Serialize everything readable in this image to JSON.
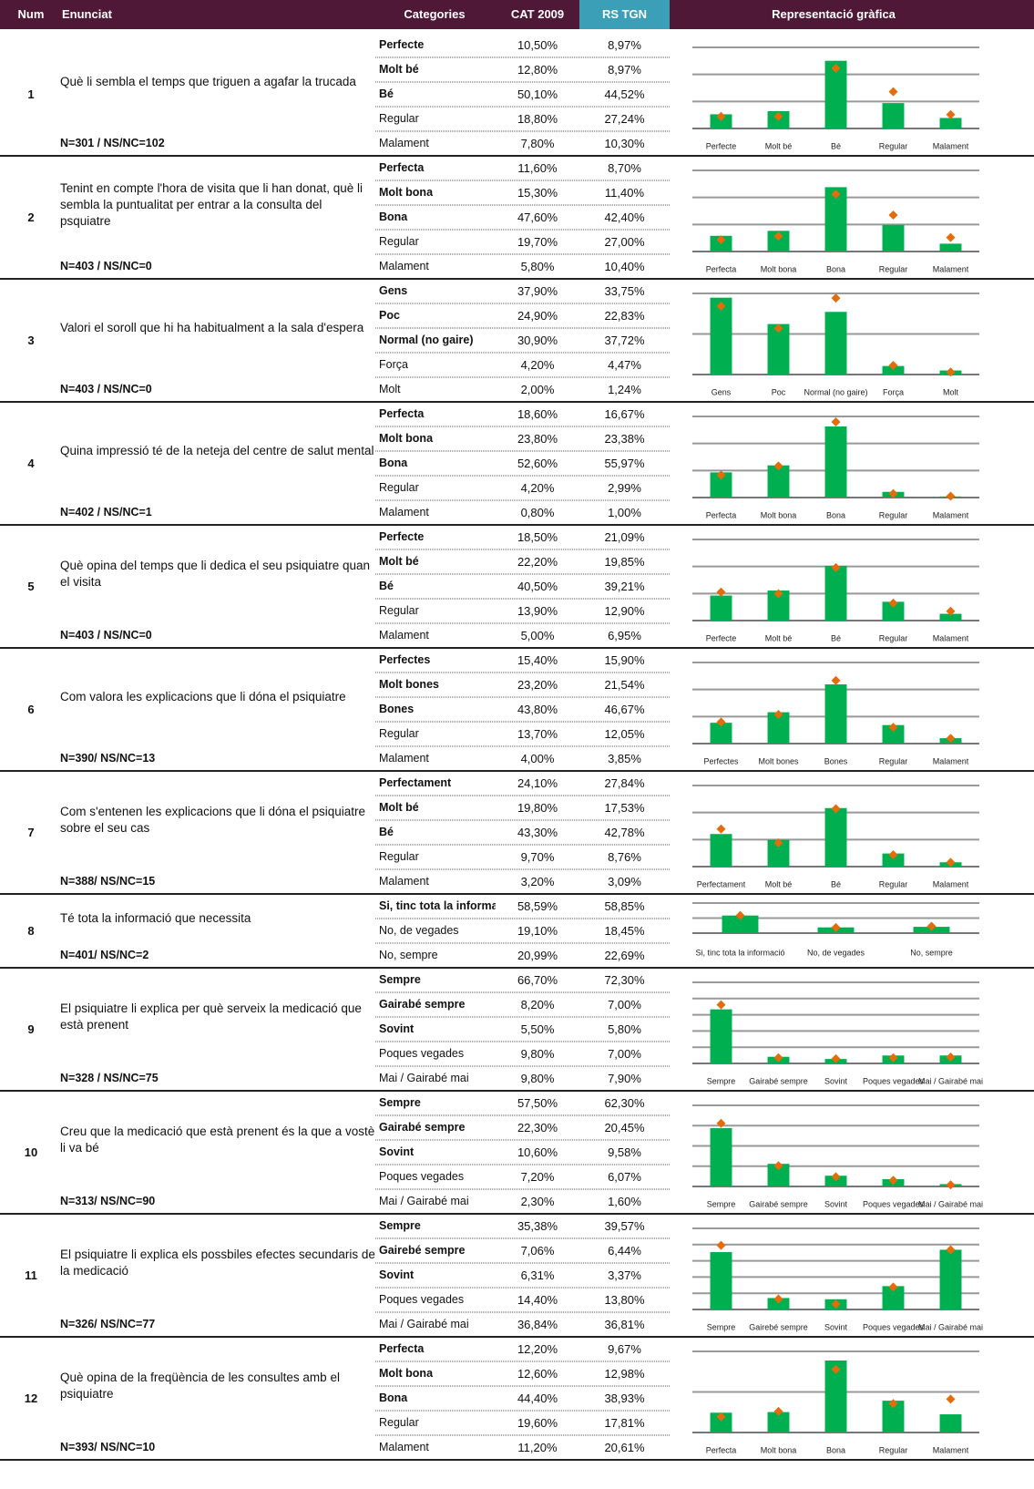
{
  "header": {
    "num": "Num",
    "enunciat": "Enunciat",
    "categories": "Categories",
    "cat2009": "CAT 2009",
    "rstgn": "RS TGN",
    "chart": "Representació gràfica"
  },
  "bar_color": "#00b050",
  "marker_color": "#e46c0a",
  "questions": [
    {
      "num": "1",
      "text": "Què li sembla el temps que triguen a agafar la trucada",
      "n": "N=301 / NS/NC=102",
      "ylim": [
        0,
        60
      ],
      "yticks": [
        0,
        20,
        40,
        60
      ],
      "categories": [
        {
          "name": "Perfecte",
          "cat": 10.5,
          "cat_label": "10,50%",
          "rs": 8.97,
          "rs_label": "8,97%",
          "bold": true
        },
        {
          "name": "Molt bé",
          "cat": 12.8,
          "cat_label": "12,80%",
          "rs": 8.97,
          "rs_label": "8,97%",
          "bold": true
        },
        {
          "name": "Bé",
          "cat": 50.1,
          "cat_label": "50,10%",
          "rs": 44.52,
          "rs_label": "44,52%",
          "bold": true
        },
        {
          "name": "Regular",
          "cat": 18.8,
          "cat_label": "18,80%",
          "rs": 27.24,
          "rs_label": "27,24%",
          "bold": false
        },
        {
          "name": "Malament",
          "cat": 7.8,
          "cat_label": "7,80%",
          "rs": 10.3,
          "rs_label": "10,30%",
          "bold": false
        }
      ]
    },
    {
      "num": "2",
      "text": "Tenint en compte l'hora de visita que li han donat, què li sembla la puntualitat per entrar a la consulta del psquiatre",
      "n": "N=403 / NS/NC=0",
      "ylim": [
        0,
        60
      ],
      "yticks": [
        0,
        20,
        40,
        60
      ],
      "categories": [
        {
          "name": "Perfecta",
          "cat": 11.6,
          "cat_label": "11,60%",
          "rs": 8.7,
          "rs_label": "8,70%",
          "bold": true
        },
        {
          "name": "Molt bona",
          "cat": 15.3,
          "cat_label": "15,30%",
          "rs": 11.4,
          "rs_label": "11,40%",
          "bold": true
        },
        {
          "name": "Bona",
          "cat": 47.6,
          "cat_label": "47,60%",
          "rs": 42.4,
          "rs_label": "42,40%",
          "bold": true
        },
        {
          "name": "Regular",
          "cat": 19.7,
          "cat_label": "19,70%",
          "rs": 27,
          "rs_label": "27,00%",
          "bold": false
        },
        {
          "name": "Malament",
          "cat": 5.8,
          "cat_label": "5,80%",
          "rs": 10.4,
          "rs_label": "10,40%",
          "bold": false
        }
      ]
    },
    {
      "num": "3",
      "text": "Valori el soroll que hi ha habitualment a la sala d'espera",
      "n": "N=403 / NS/NC=0",
      "ylim": [
        0,
        40
      ],
      "yticks": [
        0,
        20,
        40
      ],
      "categories": [
        {
          "name": "Gens",
          "cat": 37.9,
          "cat_label": "37,90%",
          "rs": 33.75,
          "rs_label": "33,75%",
          "bold": true
        },
        {
          "name": "Poc",
          "cat": 24.9,
          "cat_label": "24,90%",
          "rs": 22.83,
          "rs_label": "22,83%",
          "bold": true
        },
        {
          "name": "Normal (no gaire)",
          "cat": 30.9,
          "cat_label": "30,90%",
          "rs": 37.72,
          "rs_label": "37,72%",
          "bold": true
        },
        {
          "name": "Força",
          "cat": 4.2,
          "cat_label": "4,20%",
          "rs": 4.47,
          "rs_label": "4,47%",
          "bold": false
        },
        {
          "name": "Molt",
          "cat": 2,
          "cat_label": "2,00%",
          "rs": 1.24,
          "rs_label": "1,24%",
          "bold": false
        }
      ]
    },
    {
      "num": "4",
      "text": "Quina impressió té de la neteja del centre de salut mental",
      "n": "N=402 / NS/NC=1",
      "ylim": [
        0,
        60
      ],
      "yticks": [
        0,
        20,
        40,
        60
      ],
      "categories": [
        {
          "name": "Perfecta",
          "cat": 18.6,
          "cat_label": "18,60%",
          "rs": 16.67,
          "rs_label": "16,67%",
          "bold": true
        },
        {
          "name": "Molt bona",
          "cat": 23.8,
          "cat_label": "23,80%",
          "rs": 23.38,
          "rs_label": "23,38%",
          "bold": true
        },
        {
          "name": "Bona",
          "cat": 52.6,
          "cat_label": "52,60%",
          "rs": 55.97,
          "rs_label": "55,97%",
          "bold": true
        },
        {
          "name": "Regular",
          "cat": 4.2,
          "cat_label": "4,20%",
          "rs": 2.99,
          "rs_label": "2,99%",
          "bold": false
        },
        {
          "name": "Malament",
          "cat": 0.8,
          "cat_label": "0,80%",
          "rs": 1,
          "rs_label": "1,00%",
          "bold": false
        }
      ]
    },
    {
      "num": "5",
      "text": "Què opina del temps que li dedica el seu psiquiatre quan el visita",
      "n": "N=403 / NS/NC=0",
      "ylim": [
        0,
        60
      ],
      "yticks": [
        0,
        20,
        40,
        60
      ],
      "categories": [
        {
          "name": "Perfecte",
          "cat": 18.5,
          "cat_label": "18,50%",
          "rs": 21.09,
          "rs_label": "21,09%",
          "bold": true
        },
        {
          "name": "Molt bé",
          "cat": 22.2,
          "cat_label": "22,20%",
          "rs": 19.85,
          "rs_label": "19,85%",
          "bold": true
        },
        {
          "name": "Bé",
          "cat": 40.5,
          "cat_label": "40,50%",
          "rs": 39.21,
          "rs_label": "39,21%",
          "bold": true
        },
        {
          "name": "Regular",
          "cat": 13.9,
          "cat_label": "13,90%",
          "rs": 12.9,
          "rs_label": "12,90%",
          "bold": false
        },
        {
          "name": "Malament",
          "cat": 5,
          "cat_label": "5,00%",
          "rs": 6.95,
          "rs_label": "6,95%",
          "bold": false
        }
      ]
    },
    {
      "num": "6",
      "text": "Com valora les explicacions que li dóna el psiquiatre",
      "n": "N=390/ NS/NC=13",
      "ylim": [
        0,
        60
      ],
      "yticks": [
        0,
        20,
        40,
        60
      ],
      "categories": [
        {
          "name": "Perfectes",
          "cat": 15.4,
          "cat_label": "15,40%",
          "rs": 15.9,
          "rs_label": "15,90%",
          "bold": true
        },
        {
          "name": "Molt bones",
          "cat": 23.2,
          "cat_label": "23,20%",
          "rs": 21.54,
          "rs_label": "21,54%",
          "bold": true
        },
        {
          "name": "Bones",
          "cat": 43.8,
          "cat_label": "43,80%",
          "rs": 46.67,
          "rs_label": "46,67%",
          "bold": true
        },
        {
          "name": "Regular",
          "cat": 13.7,
          "cat_label": "13,70%",
          "rs": 12.05,
          "rs_label": "12,05%",
          "bold": false
        },
        {
          "name": "Malament",
          "cat": 4,
          "cat_label": "4,00%",
          "rs": 3.85,
          "rs_label": "3,85%",
          "bold": false
        }
      ]
    },
    {
      "num": "7",
      "text": "Com s'entenen les explicacions que li dóna el psiquiatre sobre el seu cas",
      "n": "N=388/ NS/NC=15",
      "ylim": [
        0,
        60
      ],
      "yticks": [
        0,
        20,
        40,
        60
      ],
      "categories": [
        {
          "name": "Perfectament",
          "cat": 24.1,
          "cat_label": "24,10%",
          "rs": 27.84,
          "rs_label": "27,84%",
          "bold": true
        },
        {
          "name": "Molt bé",
          "cat": 19.8,
          "cat_label": "19,80%",
          "rs": 17.53,
          "rs_label": "17,53%",
          "bold": true
        },
        {
          "name": "Bé",
          "cat": 43.3,
          "cat_label": "43,30%",
          "rs": 42.78,
          "rs_label": "42,78%",
          "bold": true
        },
        {
          "name": "Regular",
          "cat": 9.7,
          "cat_label": "9,70%",
          "rs": 8.76,
          "rs_label": "8,76%",
          "bold": false
        },
        {
          "name": "Malament",
          "cat": 3.2,
          "cat_label": "3,20%",
          "rs": 3.09,
          "rs_label": "3,09%",
          "bold": false
        }
      ]
    },
    {
      "num": "8",
      "text": "Té tota la informació que necessita",
      "n": "N=401/ NS/NC=2",
      "ylim": [
        0,
        100
      ],
      "yticks": [
        0,
        50,
        100
      ],
      "categories": [
        {
          "name": "Si, tinc tota la informació",
          "cat": 58.59,
          "cat_label": "58,59%",
          "rs": 58.85,
          "rs_label": "58,85%",
          "bold": true
        },
        {
          "name": "No, de vegades",
          "cat": 19.1,
          "cat_label": "19,10%",
          "rs": 18.45,
          "rs_label": "18,45%",
          "bold": false
        },
        {
          "name": "No, sempre",
          "cat": 20.99,
          "cat_label": "20,99%",
          "rs": 22.69,
          "rs_label": "22,69%",
          "bold": false
        }
      ]
    },
    {
      "num": "9",
      "text": "El psiquiatre li explica per què serveix la medicació que està prenent",
      "n": "N=328 / NS/NC=75",
      "ylim": [
        0,
        100
      ],
      "yticks": [
        0,
        20,
        40,
        60,
        80,
        100
      ],
      "categories": [
        {
          "name": "Sempre",
          "cat": 66.7,
          "cat_label": "66,70%",
          "rs": 72.3,
          "rs_label": "72,30%",
          "bold": true
        },
        {
          "name": "Gairabé sempre",
          "cat": 8.2,
          "cat_label": "8,20%",
          "rs": 7,
          "rs_label": "7,00%",
          "bold": true
        },
        {
          "name": "Sovint",
          "cat": 5.5,
          "cat_label": "5,50%",
          "rs": 5.8,
          "rs_label": "5,80%",
          "bold": true
        },
        {
          "name": "Poques vegades",
          "cat": 9.8,
          "cat_label": "9,80%",
          "rs": 7,
          "rs_label": "7,00%",
          "bold": false
        },
        {
          "name": "Mai / Gairabé mai",
          "cat": 9.8,
          "cat_label": "9,80%",
          "rs": 7.9,
          "rs_label": "7,90%",
          "bold": false
        }
      ]
    },
    {
      "num": "10",
      "text": "Creu que la medicació que està prenent és la que a vostè li va bé",
      "n": "N=313/ NS/NC=90",
      "ylim": [
        0,
        80
      ],
      "yticks": [
        0,
        20,
        40,
        60,
        80
      ],
      "categories": [
        {
          "name": "Sempre",
          "cat": 57.5,
          "cat_label": "57,50%",
          "rs": 62.3,
          "rs_label": "62,30%",
          "bold": true
        },
        {
          "name": "Gairabé sempre",
          "cat": 22.3,
          "cat_label": "22,30%",
          "rs": 20.45,
          "rs_label": "20,45%",
          "bold": true
        },
        {
          "name": "Sovint",
          "cat": 10.6,
          "cat_label": "10,60%",
          "rs": 9.58,
          "rs_label": "9,58%",
          "bold": true
        },
        {
          "name": "Poques vegades",
          "cat": 7.2,
          "cat_label": "7,20%",
          "rs": 6.07,
          "rs_label": "6,07%",
          "bold": false
        },
        {
          "name": "Mai / Gairabé mai",
          "cat": 2.3,
          "cat_label": "2,30%",
          "rs": 1.6,
          "rs_label": "1,60%",
          "bold": false
        }
      ]
    },
    {
      "num": "11",
      "text": "El psiquiatre li explica els possbiles efectes secundaris de la medicació",
      "n": "N=326/ NS/NC=77",
      "ylim": [
        0,
        50
      ],
      "yticks": [
        0,
        10,
        20,
        30,
        40,
        50
      ],
      "categories": [
        {
          "name": "Sempre",
          "cat": 35.38,
          "cat_label": "35,38%",
          "rs": 39.57,
          "rs_label": "39,57%",
          "bold": true
        },
        {
          "name": "Gairebé sempre",
          "cat": 7.06,
          "cat_label": "7,06%",
          "rs": 6.44,
          "rs_label": "6,44%",
          "bold": true
        },
        {
          "name": "Sovint",
          "cat": 6.31,
          "cat_label": "6,31%",
          "rs": 3.37,
          "rs_label": "3,37%",
          "bold": true
        },
        {
          "name": "Poques vegades",
          "cat": 14.4,
          "cat_label": "14,40%",
          "rs": 13.8,
          "rs_label": "13,80%",
          "bold": false
        },
        {
          "name": "Mai / Gairabé mai",
          "cat": 36.84,
          "cat_label": "36,84%",
          "rs": 36.81,
          "rs_label": "36,81%",
          "bold": false
        }
      ]
    },
    {
      "num": "12",
      "text": "Què opina de la freqüència de les consultes amb el psiquiatre",
      "n": "N=393/ NS/NC=10",
      "ylim": [
        0,
        50
      ],
      "yticks": [
        0,
        25,
        50
      ],
      "categories": [
        {
          "name": "Perfecta",
          "cat": 12.2,
          "cat_label": "12,20%",
          "rs": 9.67,
          "rs_label": "9,67%",
          "bold": true
        },
        {
          "name": "Molt bona",
          "cat": 12.6,
          "cat_label": "12,60%",
          "rs": 12.98,
          "rs_label": "12,98%",
          "bold": true
        },
        {
          "name": "Bona",
          "cat": 44.4,
          "cat_label": "44,40%",
          "rs": 38.93,
          "rs_label": "38,93%",
          "bold": true
        },
        {
          "name": "Regular",
          "cat": 19.6,
          "cat_label": "19,60%",
          "rs": 17.81,
          "rs_label": "17,81%",
          "bold": false
        },
        {
          "name": "Malament",
          "cat": 11.2,
          "cat_label": "11,20%",
          "rs": 20.61,
          "rs_label": "20,61%",
          "bold": false
        }
      ]
    }
  ]
}
